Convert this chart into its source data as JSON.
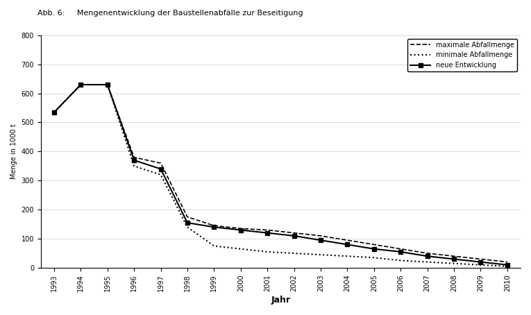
{
  "title": "Abb. 6:     Mengenentwicklung der Baustellenabfälle zur Beseitigung",
  "xlabel": "Jahr",
  "ylabel": "Menge in 1000 t",
  "ylim": [
    0,
    800
  ],
  "yticks": [
    0,
    100,
    200,
    300,
    400,
    500,
    600,
    700,
    800
  ],
  "years_main": [
    1993,
    1994,
    1995,
    1996,
    1997,
    1998,
    1999,
    2000,
    2001,
    2002,
    2003,
    2004,
    2005,
    2006,
    2007,
    2008,
    2009,
    2010
  ],
  "neue_entwicklung": [
    535,
    630,
    630,
    370,
    340,
    155,
    140,
    130,
    120,
    110,
    95,
    80,
    65,
    55,
    40,
    30,
    20,
    10
  ],
  "minimale_abfallmenge": [
    535,
    630,
    630,
    350,
    320,
    140,
    75,
    65,
    55,
    50,
    45,
    40,
    35,
    25,
    20,
    15,
    10,
    5
  ],
  "maximale_abfallmenge": [
    535,
    630,
    630,
    380,
    360,
    175,
    145,
    135,
    130,
    120,
    110,
    95,
    80,
    65,
    50,
    40,
    30,
    20
  ],
  "legend_neue": "neue Entwicklung",
  "legend_min": "minimale Abfallmenge",
  "legend_max": "maximale Abfallmenge",
  "line_color": "#000000",
  "bg_color": "#ffffff"
}
